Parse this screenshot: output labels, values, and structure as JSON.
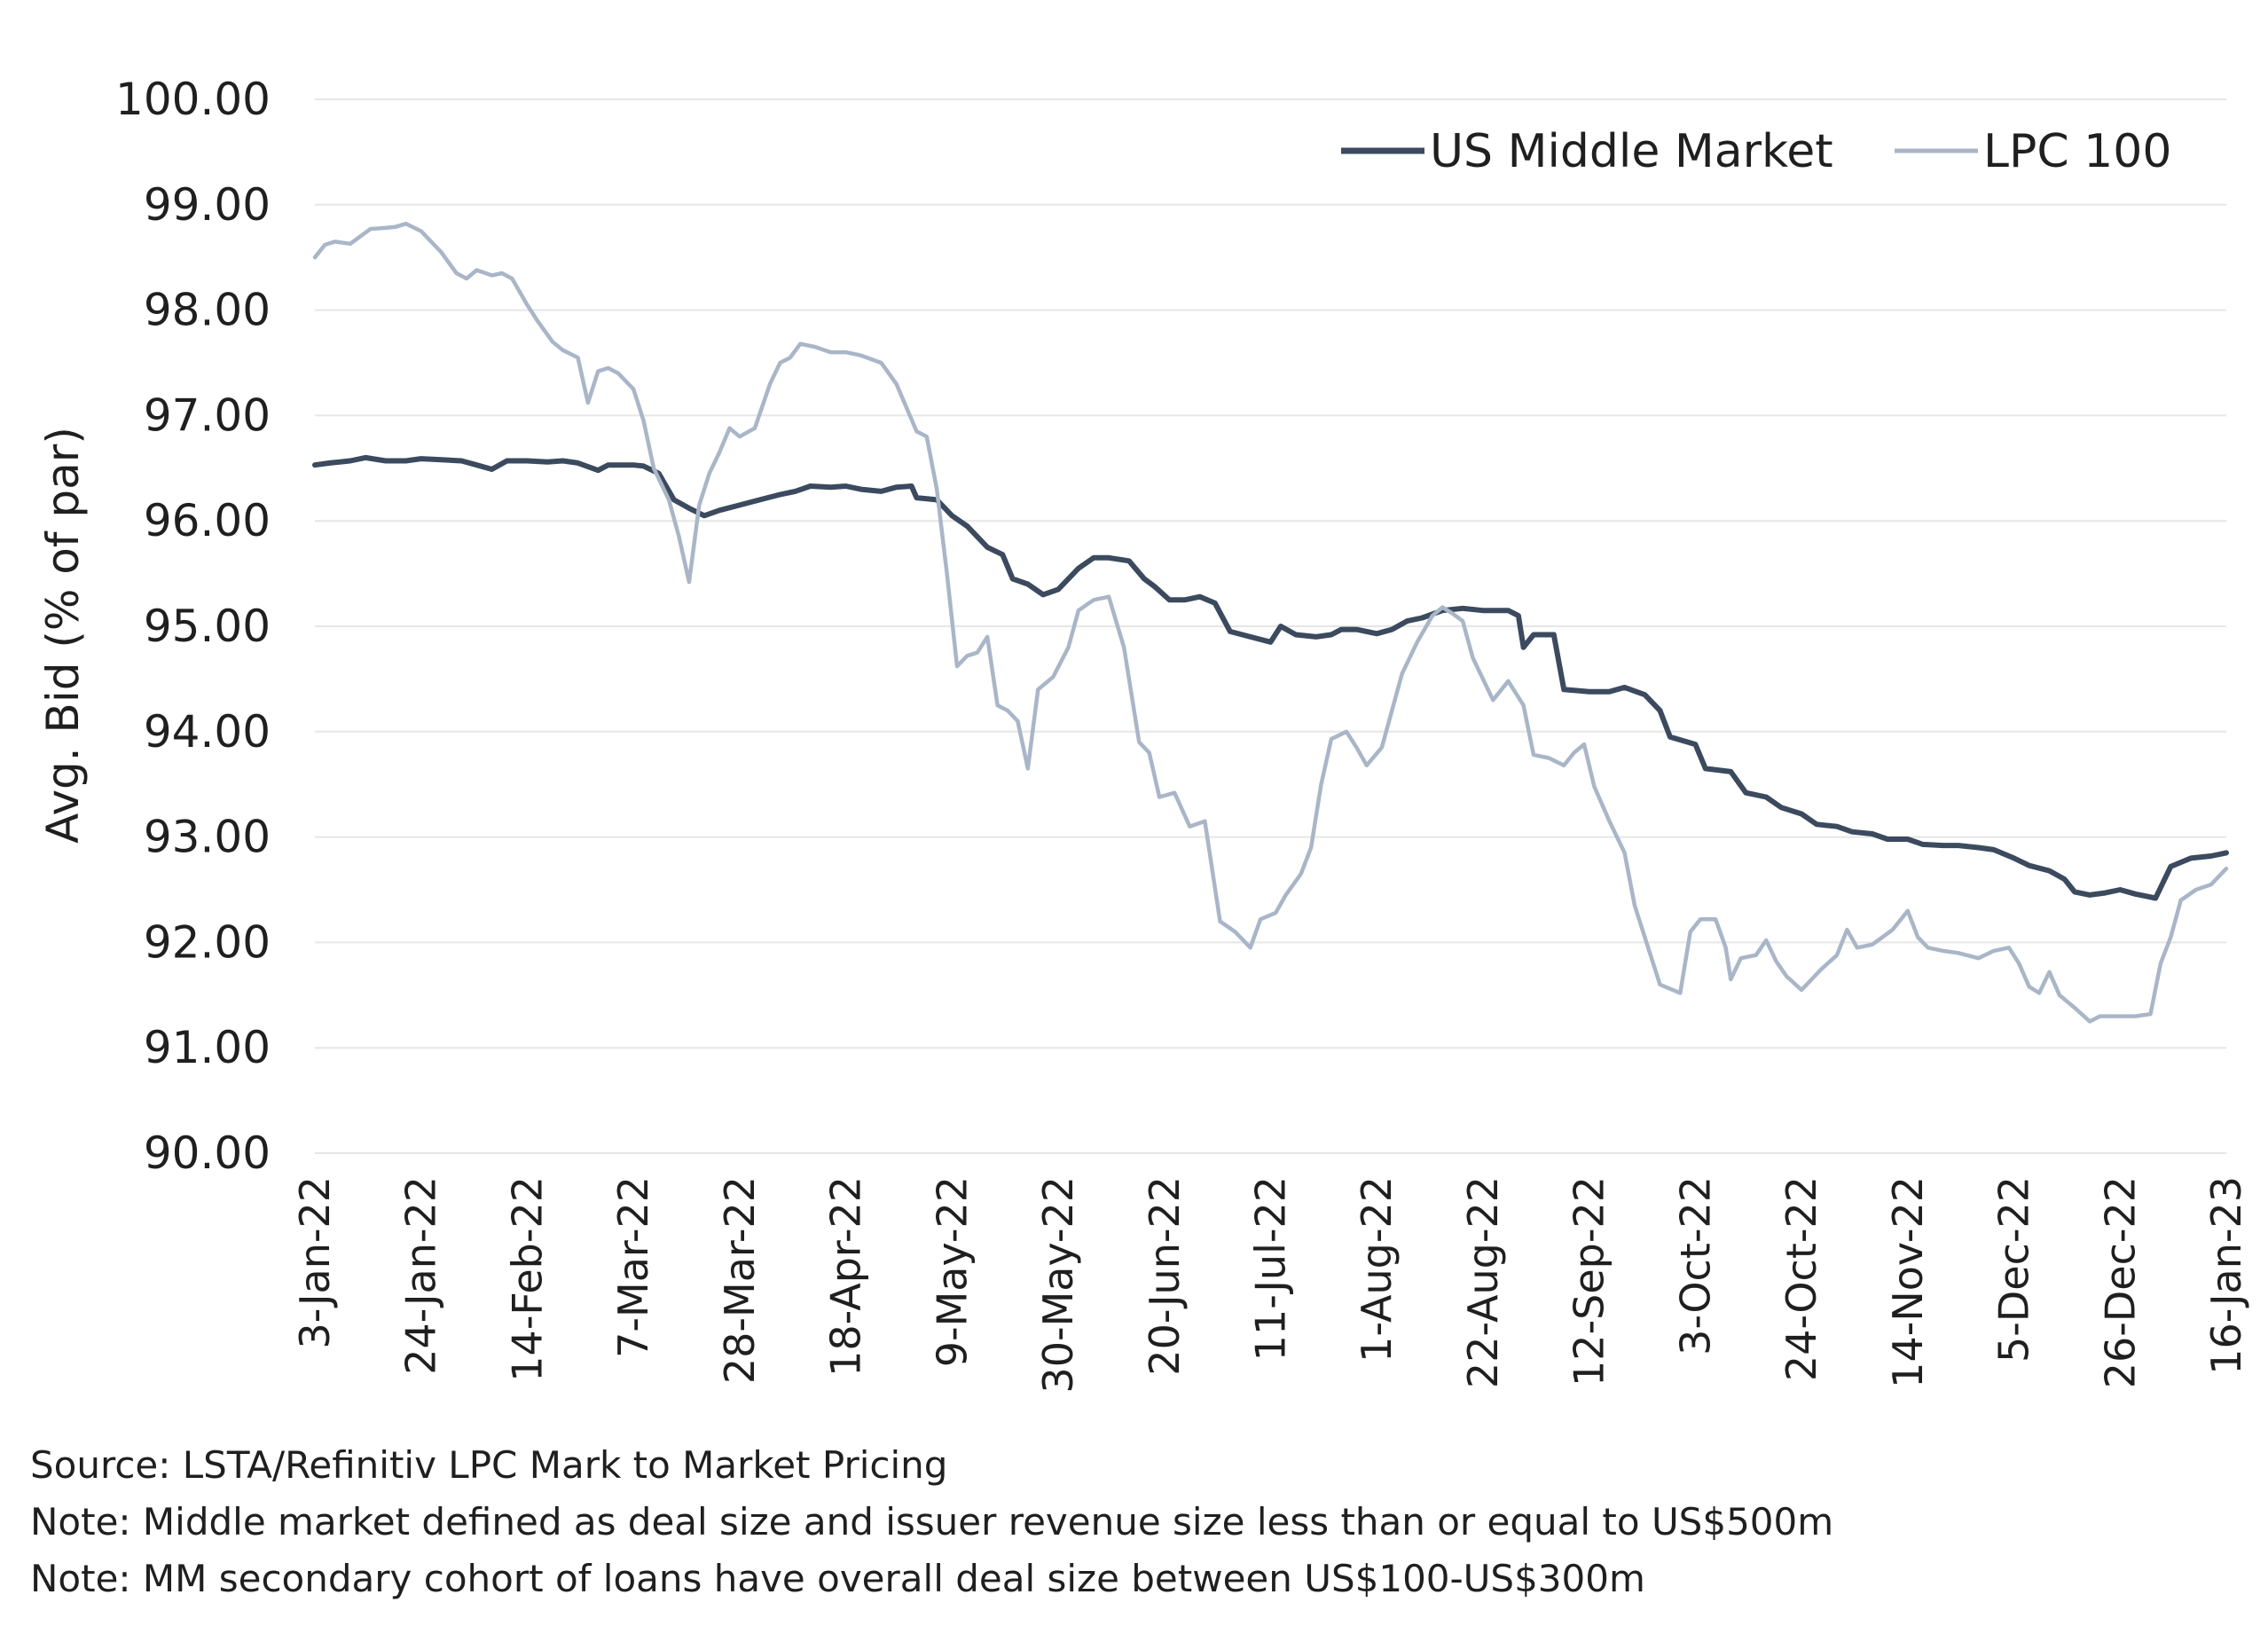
{
  "chart_data": {
    "type": "line",
    "title": "",
    "ylabel": "Avg. Bid (% of par)",
    "xlabel": "",
    "ylim": [
      90,
      100
    ],
    "yticks": [
      "100.00",
      "99.00",
      "98.00",
      "97.00",
      "96.00",
      "95.00",
      "94.00",
      "93.00",
      "92.00",
      "91.00",
      "90.00"
    ],
    "grid": true,
    "legend_position": "top-right",
    "x_tick_labels": [
      "3-Jan-22",
      "24-Jan-22",
      "14-Feb-22",
      "7-Mar-22",
      "28-Mar-22",
      "18-Apr-22",
      "9-May-22",
      "30-May-22",
      "20-Jun-22",
      "11-Jul-22",
      "1-Aug-22",
      "22-Aug-22",
      "12-Sep-22",
      "3-Oct-22",
      "24-Oct-22",
      "14-Nov-22",
      "5-Dec-22",
      "26-Dec-22",
      "16-Jan-23"
    ],
    "series": [
      {
        "name": "US Middle Market",
        "color": "#3b4a5e",
        "points": [
          [
            "2022-01-03",
            96.53
          ],
          [
            "2022-01-06",
            96.55
          ],
          [
            "2022-01-10",
            96.57
          ],
          [
            "2022-01-13",
            96.6
          ],
          [
            "2022-01-17",
            96.57
          ],
          [
            "2022-01-21",
            96.57
          ],
          [
            "2022-01-24",
            96.59
          ],
          [
            "2022-01-28",
            96.58
          ],
          [
            "2022-02-01",
            96.57
          ],
          [
            "2022-02-04",
            96.53
          ],
          [
            "2022-02-07",
            96.49
          ],
          [
            "2022-02-10",
            96.57
          ],
          [
            "2022-02-14",
            96.57
          ],
          [
            "2022-02-18",
            96.56
          ],
          [
            "2022-02-21",
            96.57
          ],
          [
            "2022-02-24",
            96.55
          ],
          [
            "2022-02-28",
            96.48
          ],
          [
            "2022-03-02",
            96.53
          ],
          [
            "2022-03-07",
            96.53
          ],
          [
            "2022-03-09",
            96.52
          ],
          [
            "2022-03-12",
            96.45
          ],
          [
            "2022-03-15",
            96.2
          ],
          [
            "2022-03-18",
            96.12
          ],
          [
            "2022-03-21",
            96.05
          ],
          [
            "2022-03-24",
            96.1
          ],
          [
            "2022-03-28",
            96.15
          ],
          [
            "2022-04-01",
            96.2
          ],
          [
            "2022-04-05",
            96.25
          ],
          [
            "2022-04-08",
            96.28
          ],
          [
            "2022-04-11",
            96.33
          ],
          [
            "2022-04-15",
            96.32
          ],
          [
            "2022-04-18",
            96.33
          ],
          [
            "2022-04-21",
            96.3
          ],
          [
            "2022-04-25",
            96.28
          ],
          [
            "2022-04-28",
            96.32
          ],
          [
            "2022-05-01",
            96.33
          ],
          [
            "2022-05-02",
            96.22
          ],
          [
            "2022-05-06",
            96.2
          ],
          [
            "2022-05-09",
            96.05
          ],
          [
            "2022-05-12",
            95.95
          ],
          [
            "2022-05-16",
            95.75
          ],
          [
            "2022-05-19",
            95.68
          ],
          [
            "2022-05-21",
            95.45
          ],
          [
            "2022-05-24",
            95.4
          ],
          [
            "2022-05-27",
            95.3
          ],
          [
            "2022-05-30",
            95.35
          ],
          [
            "2022-06-03",
            95.55
          ],
          [
            "2022-06-06",
            95.65
          ],
          [
            "2022-06-09",
            95.65
          ],
          [
            "2022-06-13",
            95.62
          ],
          [
            "2022-06-16",
            95.45
          ],
          [
            "2022-06-18",
            95.38
          ],
          [
            "2022-06-21",
            95.25
          ],
          [
            "2022-06-24",
            95.25
          ],
          [
            "2022-06-27",
            95.28
          ],
          [
            "2022-06-30",
            95.22
          ],
          [
            "2022-07-03",
            94.95
          ],
          [
            "2022-07-07",
            94.9
          ],
          [
            "2022-07-11",
            94.85
          ],
          [
            "2022-07-13",
            95.0
          ],
          [
            "2022-07-16",
            94.92
          ],
          [
            "2022-07-20",
            94.9
          ],
          [
            "2022-07-23",
            94.92
          ],
          [
            "2022-07-25",
            94.97
          ],
          [
            "2022-07-28",
            94.97
          ],
          [
            "2022-08-01",
            94.93
          ],
          [
            "2022-08-04",
            94.97
          ],
          [
            "2022-08-07",
            95.05
          ],
          [
            "2022-08-10",
            95.08
          ],
          [
            "2022-08-14",
            95.15
          ],
          [
            "2022-08-18",
            95.17
          ],
          [
            "2022-08-22",
            95.15
          ],
          [
            "2022-08-27",
            95.15
          ],
          [
            "2022-08-29",
            95.1
          ],
          [
            "2022-08-30",
            94.8
          ],
          [
            "2022-09-01",
            94.92
          ],
          [
            "2022-09-05",
            94.92
          ],
          [
            "2022-09-07",
            94.4
          ],
          [
            "2022-09-12",
            94.38
          ],
          [
            "2022-09-16",
            94.38
          ],
          [
            "2022-09-19",
            94.42
          ],
          [
            "2022-09-23",
            94.35
          ],
          [
            "2022-09-26",
            94.2
          ],
          [
            "2022-09-28",
            93.95
          ],
          [
            "2022-10-03",
            93.88
          ],
          [
            "2022-10-05",
            93.65
          ],
          [
            "2022-10-10",
            93.62
          ],
          [
            "2022-10-13",
            93.42
          ],
          [
            "2022-10-17",
            93.38
          ],
          [
            "2022-10-20",
            93.28
          ],
          [
            "2022-10-24",
            93.22
          ],
          [
            "2022-10-27",
            93.12
          ],
          [
            "2022-10-31",
            93.1
          ],
          [
            "2022-11-03",
            93.05
          ],
          [
            "2022-11-07",
            93.03
          ],
          [
            "2022-11-10",
            92.98
          ],
          [
            "2022-11-14",
            92.98
          ],
          [
            "2022-11-17",
            92.93
          ],
          [
            "2022-11-21",
            92.92
          ],
          [
            "2022-11-24",
            92.92
          ],
          [
            "2022-11-28",
            92.9
          ],
          [
            "2022-12-01",
            92.88
          ],
          [
            "2022-12-05",
            92.8
          ],
          [
            "2022-12-08",
            92.73
          ],
          [
            "2022-12-12",
            92.68
          ],
          [
            "2022-12-15",
            92.6
          ],
          [
            "2022-12-17",
            92.48
          ],
          [
            "2022-12-20",
            92.45
          ],
          [
            "2022-12-23",
            92.47
          ],
          [
            "2022-12-26",
            92.5
          ],
          [
            "2022-12-29",
            92.46
          ],
          [
            "2023-01-02",
            92.42
          ],
          [
            "2023-01-05",
            92.72
          ],
          [
            "2023-01-09",
            92.8
          ],
          [
            "2023-01-13",
            92.82
          ],
          [
            "2023-01-16",
            92.85
          ]
        ]
      },
      {
        "name": "LPC 100",
        "color": "#a9b6c8",
        "points": [
          [
            "2022-01-03",
            98.5
          ],
          [
            "2022-01-05",
            98.62
          ],
          [
            "2022-01-07",
            98.65
          ],
          [
            "2022-01-10",
            98.63
          ],
          [
            "2022-01-12",
            98.7
          ],
          [
            "2022-01-14",
            98.77
          ],
          [
            "2022-01-17",
            98.78
          ],
          [
            "2022-01-19",
            98.79
          ],
          [
            "2022-01-21",
            98.82
          ],
          [
            "2022-01-24",
            98.75
          ],
          [
            "2022-01-26",
            98.65
          ],
          [
            "2022-01-28",
            98.55
          ],
          [
            "2022-01-31",
            98.35
          ],
          [
            "2022-02-02",
            98.3
          ],
          [
            "2022-02-04",
            98.38
          ],
          [
            "2022-02-07",
            98.33
          ],
          [
            "2022-02-09",
            98.35
          ],
          [
            "2022-02-11",
            98.3
          ],
          [
            "2022-02-14",
            98.05
          ],
          [
            "2022-02-16",
            97.9
          ],
          [
            "2022-02-19",
            97.7
          ],
          [
            "2022-02-21",
            97.62
          ],
          [
            "2022-02-24",
            97.55
          ],
          [
            "2022-02-26",
            97.12
          ],
          [
            "2022-02-28",
            97.42
          ],
          [
            "2022-03-02",
            97.45
          ],
          [
            "2022-03-04",
            97.4
          ],
          [
            "2022-03-07",
            97.25
          ],
          [
            "2022-03-09",
            96.95
          ],
          [
            "2022-03-11",
            96.5
          ],
          [
            "2022-03-14",
            96.2
          ],
          [
            "2022-03-16",
            95.85
          ],
          [
            "2022-03-18",
            95.42
          ],
          [
            "2022-03-20",
            96.15
          ],
          [
            "2022-03-22",
            96.45
          ],
          [
            "2022-03-24",
            96.65
          ],
          [
            "2022-03-26",
            96.88
          ],
          [
            "2022-03-28",
            96.8
          ],
          [
            "2022-03-31",
            96.88
          ],
          [
            "2022-04-03",
            97.3
          ],
          [
            "2022-04-05",
            97.5
          ],
          [
            "2022-04-07",
            97.55
          ],
          [
            "2022-04-09",
            97.68
          ],
          [
            "2022-04-12",
            97.65
          ],
          [
            "2022-04-15",
            97.6
          ],
          [
            "2022-04-18",
            97.6
          ],
          [
            "2022-04-21",
            97.57
          ],
          [
            "2022-04-25",
            97.5
          ],
          [
            "2022-04-28",
            97.3
          ],
          [
            "2022-05-02",
            96.85
          ],
          [
            "2022-05-04",
            96.8
          ],
          [
            "2022-05-06",
            96.3
          ],
          [
            "2022-05-08",
            95.5
          ],
          [
            "2022-05-10",
            94.62
          ],
          [
            "2022-05-12",
            94.72
          ],
          [
            "2022-05-14",
            94.75
          ],
          [
            "2022-05-16",
            94.9
          ],
          [
            "2022-05-18",
            94.25
          ],
          [
            "2022-05-20",
            94.2
          ],
          [
            "2022-05-22",
            94.1
          ],
          [
            "2022-05-24",
            93.65
          ],
          [
            "2022-05-26",
            94.4
          ],
          [
            "2022-05-29",
            94.52
          ],
          [
            "2022-06-01",
            94.8
          ],
          [
            "2022-06-03",
            95.15
          ],
          [
            "2022-06-06",
            95.25
          ],
          [
            "2022-06-09",
            95.28
          ],
          [
            "2022-06-12",
            94.8
          ],
          [
            "2022-06-15",
            93.9
          ],
          [
            "2022-06-17",
            93.8
          ],
          [
            "2022-06-19",
            93.38
          ],
          [
            "2022-06-22",
            93.42
          ],
          [
            "2022-06-25",
            93.1
          ],
          [
            "2022-06-28",
            93.15
          ],
          [
            "2022-07-01",
            92.2
          ],
          [
            "2022-07-04",
            92.1
          ],
          [
            "2022-07-07",
            91.95
          ],
          [
            "2022-07-09",
            92.22
          ],
          [
            "2022-07-12",
            92.28
          ],
          [
            "2022-07-14",
            92.45
          ],
          [
            "2022-07-17",
            92.65
          ],
          [
            "2022-07-19",
            92.9
          ],
          [
            "2022-07-21",
            93.5
          ],
          [
            "2022-07-23",
            93.93
          ],
          [
            "2022-07-26",
            94.0
          ],
          [
            "2022-07-28",
            93.85
          ],
          [
            "2022-07-30",
            93.68
          ],
          [
            "2022-08-02",
            93.85
          ],
          [
            "2022-08-04",
            94.2
          ],
          [
            "2022-08-06",
            94.55
          ],
          [
            "2022-08-09",
            94.85
          ],
          [
            "2022-08-12",
            95.1
          ],
          [
            "2022-08-14",
            95.18
          ],
          [
            "2022-08-16",
            95.12
          ],
          [
            "2022-08-18",
            95.05
          ],
          [
            "2022-08-20",
            94.7
          ],
          [
            "2022-08-22",
            94.5
          ],
          [
            "2022-08-24",
            94.3
          ],
          [
            "2022-08-27",
            94.48
          ],
          [
            "2022-08-30",
            94.25
          ],
          [
            "2022-09-01",
            93.78
          ],
          [
            "2022-09-04",
            93.75
          ],
          [
            "2022-09-07",
            93.68
          ],
          [
            "2022-09-09",
            93.8
          ],
          [
            "2022-09-11",
            93.88
          ],
          [
            "2022-09-13",
            93.48
          ],
          [
            "2022-09-16",
            93.15
          ],
          [
            "2022-09-19",
            92.85
          ],
          [
            "2022-09-21",
            92.35
          ],
          [
            "2022-09-23",
            92.05
          ],
          [
            "2022-09-26",
            91.6
          ],
          [
            "2022-09-30",
            91.52
          ],
          [
            "2022-10-02",
            92.1
          ],
          [
            "2022-10-04",
            92.22
          ],
          [
            "2022-10-07",
            92.22
          ],
          [
            "2022-10-09",
            91.95
          ],
          [
            "2022-10-10",
            91.65
          ],
          [
            "2022-10-12",
            91.85
          ],
          [
            "2022-10-15",
            91.88
          ],
          [
            "2022-10-17",
            92.02
          ],
          [
            "2022-10-19",
            91.82
          ],
          [
            "2022-10-21",
            91.68
          ],
          [
            "2022-10-24",
            91.55
          ],
          [
            "2022-10-26",
            91.65
          ],
          [
            "2022-10-28",
            91.75
          ],
          [
            "2022-10-31",
            91.88
          ],
          [
            "2022-11-02",
            92.12
          ],
          [
            "2022-11-04",
            91.95
          ],
          [
            "2022-11-07",
            91.98
          ],
          [
            "2022-11-09",
            92.05
          ],
          [
            "2022-11-11",
            92.12
          ],
          [
            "2022-11-14",
            92.3
          ],
          [
            "2022-11-16",
            92.05
          ],
          [
            "2022-11-18",
            91.95
          ],
          [
            "2022-11-21",
            91.92
          ],
          [
            "2022-11-24",
            91.9
          ],
          [
            "2022-11-28",
            91.85
          ],
          [
            "2022-12-01",
            91.92
          ],
          [
            "2022-12-04",
            91.95
          ],
          [
            "2022-12-06",
            91.8
          ],
          [
            "2022-12-08",
            91.58
          ],
          [
            "2022-12-10",
            91.52
          ],
          [
            "2022-12-12",
            91.72
          ],
          [
            "2022-12-14",
            91.5
          ],
          [
            "2022-12-17",
            91.38
          ],
          [
            "2022-12-20",
            91.25
          ],
          [
            "2022-12-22",
            91.3
          ],
          [
            "2022-12-26",
            91.3
          ],
          [
            "2022-12-29",
            91.3
          ],
          [
            "2023-01-01",
            91.32
          ],
          [
            "2023-01-03",
            91.8
          ],
          [
            "2023-01-05",
            92.05
          ],
          [
            "2023-01-07",
            92.4
          ],
          [
            "2023-01-10",
            92.5
          ],
          [
            "2023-01-13",
            92.55
          ],
          [
            "2023-01-16",
            92.7
          ]
        ]
      }
    ]
  },
  "notes": [
    "Source: LSTA/Refinitiv LPC Mark to Market Pricing",
    "Note: Middle market defined as deal size and issuer revenue size less than or equal to US$500m",
    "Note: MM secondary cohort of loans have overall deal size between US$100-US$300m"
  ]
}
